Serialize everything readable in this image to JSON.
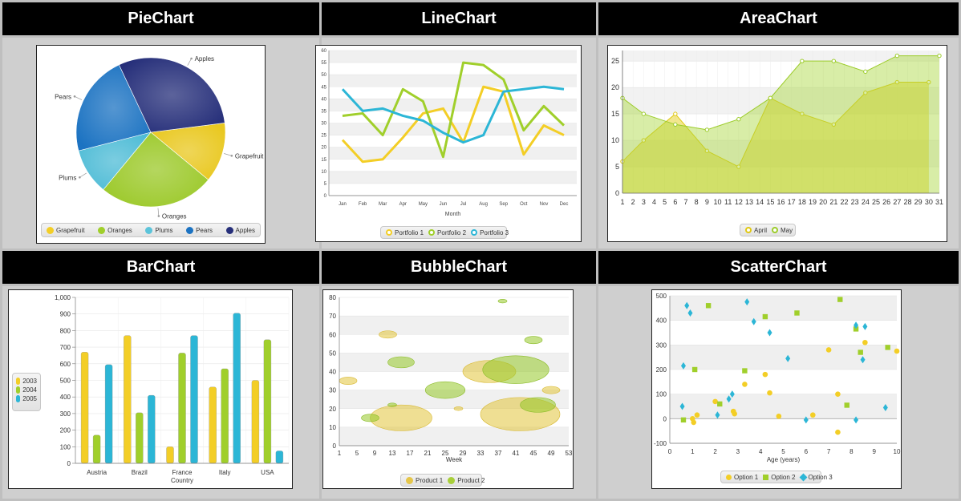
{
  "headers": {
    "pie": "PieChart",
    "line": "LineChart",
    "area": "AreaChart",
    "bar": "BarChart",
    "bubble": "BubbleChart",
    "scatter": "ScatterChart"
  },
  "colors": {
    "yellow": "#f3ce26",
    "green": "#a0cf2b",
    "cyan": "#2cb6d6",
    "blue": "#1c73c2",
    "navy": "#262f7a"
  },
  "chart_data": [
    {
      "id": "pie",
      "type": "pie",
      "labels": [
        "Grapefruit",
        "Oranges",
        "Plums",
        "Pears",
        "Apples"
      ],
      "values": [
        13,
        25,
        10,
        22,
        30
      ],
      "legend": [
        "Grapefruit",
        "Oranges",
        "Plums",
        "Pears",
        "Apples"
      ],
      "legend_position": "bottom"
    },
    {
      "id": "line",
      "type": "line",
      "categories": [
        "Jan",
        "Feb",
        "Mar",
        "Apr",
        "May",
        "Jun",
        "Jul",
        "Aug",
        "Sep",
        "Oct",
        "Nov",
        "Dec"
      ],
      "xlabel": "Month",
      "ylim": [
        0,
        60
      ],
      "yticks": [
        0,
        5,
        10,
        15,
        20,
        25,
        30,
        35,
        40,
        45,
        50,
        55,
        60
      ],
      "series": [
        {
          "name": "Portfolio 1",
          "values": [
            23,
            14,
            15,
            24,
            34,
            36,
            22,
            45,
            43,
            17,
            29,
            25
          ]
        },
        {
          "name": "Portfolio 2",
          "values": [
            33,
            34,
            25,
            44,
            39,
            16,
            55,
            54,
            48,
            27,
            37,
            29
          ]
        },
        {
          "name": "Portfolio 3",
          "values": [
            44,
            35,
            36,
            33,
            31,
            26,
            22,
            25,
            43,
            44,
            45,
            44
          ]
        }
      ],
      "legend_position": "bottom"
    },
    {
      "id": "area",
      "type": "area",
      "xticks": [
        "1",
        "2",
        "3",
        "4",
        "5",
        "6",
        "7",
        "8",
        "9",
        "10",
        "11",
        "12",
        "13",
        "14",
        "15",
        "16",
        "17",
        "18",
        "19",
        "20",
        "21",
        "22",
        "23",
        "24",
        "25",
        "26",
        "27",
        "28",
        "29",
        "30",
        "31"
      ],
      "ylim": [
        0,
        27
      ],
      "yticks": [
        0,
        5,
        10,
        15,
        20,
        25
      ],
      "series": [
        {
          "name": "April",
          "x": [
            1,
            3,
            6,
            9,
            12,
            15,
            18,
            21,
            24,
            27,
            30
          ],
          "values": [
            6,
            10,
            15,
            8,
            5,
            18,
            15,
            13,
            19,
            21,
            21
          ]
        },
        {
          "name": "May",
          "x": [
            1,
            3,
            6,
            9,
            12,
            15,
            18,
            21,
            24,
            27,
            31
          ],
          "values": [
            18,
            15,
            13,
            12,
            14,
            18,
            25,
            25,
            23,
            26,
            26
          ]
        }
      ],
      "legend_position": "bottom"
    },
    {
      "id": "bar",
      "type": "bar",
      "categories": [
        "Austria",
        "Brazil",
        "France",
        "Italy",
        "USA"
      ],
      "xlabel": "Country",
      "ylim": [
        0,
        1000
      ],
      "yticks": [
        "0",
        "100",
        "200",
        "300",
        "400",
        "500",
        "600",
        "700",
        "800",
        "900",
        "1,000"
      ],
      "series": [
        {
          "name": "2003",
          "values": [
            670,
            770,
            100,
            460,
            500
          ]
        },
        {
          "name": "2004",
          "values": [
            170,
            305,
            665,
            570,
            745
          ]
        },
        {
          "name": "2005",
          "values": [
            595,
            410,
            770,
            905,
            75
          ]
        }
      ],
      "legend_position": "left"
    },
    {
      "id": "bubble",
      "type": "scatter",
      "xlabel": "Week",
      "xlim": [
        1,
        53
      ],
      "xticks": [
        1,
        5,
        9,
        13,
        17,
        21,
        25,
        29,
        33,
        37,
        41,
        45,
        49,
        53
      ],
      "ylim": [
        0,
        80
      ],
      "yticks": [
        0,
        10,
        20,
        30,
        40,
        50,
        60,
        70,
        80
      ],
      "series": [
        {
          "name": "Product 1",
          "points": [
            [
              3,
              35,
              2
            ],
            [
              12,
              60,
              2
            ],
            [
              15,
              15,
              7
            ],
            [
              28,
              20,
              1
            ],
            [
              35,
              40,
              6
            ],
            [
              42,
              17,
              9
            ],
            [
              49,
              30,
              2
            ]
          ]
        },
        {
          "name": "Product 2",
          "points": [
            [
              8,
              15,
              2
            ],
            [
              13,
              22,
              1
            ],
            [
              15,
              45,
              3
            ],
            [
              25,
              30,
              4.5
            ],
            [
              38,
              78,
              1
            ],
            [
              41,
              41,
              7.5
            ],
            [
              45,
              57,
              2
            ],
            [
              46,
              22,
              4
            ]
          ]
        }
      ],
      "legend_position": "bottom"
    },
    {
      "id": "scatter",
      "type": "scatter",
      "xlabel": "Age (years)",
      "xlim": [
        0,
        10
      ],
      "xticks": [
        0,
        1,
        2,
        3,
        4,
        5,
        6,
        7,
        8,
        9,
        10
      ],
      "ylim": [
        -100,
        500
      ],
      "yticks": [
        -100,
        0,
        100,
        200,
        300,
        400,
        500
      ],
      "series": [
        {
          "name": "Option 1",
          "points": [
            [
              1.0,
              0
            ],
            [
              1.05,
              -15
            ],
            [
              1.2,
              15
            ],
            [
              2.0,
              70
            ],
            [
              2.8,
              30
            ],
            [
              2.85,
              20
            ],
            [
              3.3,
              140
            ],
            [
              4.2,
              180
            ],
            [
              4.4,
              105
            ],
            [
              4.8,
              10
            ],
            [
              6.3,
              15
            ],
            [
              7.0,
              280
            ],
            [
              7.4,
              100
            ],
            [
              7.4,
              -55
            ],
            [
              8.6,
              310
            ],
            [
              10.0,
              275
            ]
          ]
        },
        {
          "name": "Option 2",
          "points": [
            [
              0.6,
              -5
            ],
            [
              1.1,
              200
            ],
            [
              1.7,
              460
            ],
            [
              2.2,
              60
            ],
            [
              3.3,
              195
            ],
            [
              4.2,
              415
            ],
            [
              5.6,
              430
            ],
            [
              7.5,
              485
            ],
            [
              7.8,
              55
            ],
            [
              8.2,
              365
            ],
            [
              8.4,
              270
            ],
            [
              9.6,
              290
            ]
          ]
        },
        {
          "name": "Option 3",
          "points": [
            [
              0.55,
              50
            ],
            [
              0.6,
              215
            ],
            [
              0.75,
              460
            ],
            [
              0.9,
              430
            ],
            [
              2.1,
              15
            ],
            [
              2.6,
              80
            ],
            [
              2.75,
              100
            ],
            [
              3.4,
              475
            ],
            [
              3.7,
              395
            ],
            [
              4.4,
              350
            ],
            [
              5.2,
              245
            ],
            [
              6.0,
              -5
            ],
            [
              8.2,
              380
            ],
            [
              8.2,
              -5
            ],
            [
              8.5,
              240
            ],
            [
              8.6,
              375
            ],
            [
              9.5,
              45
            ]
          ]
        }
      ],
      "legend_position": "bottom"
    }
  ]
}
